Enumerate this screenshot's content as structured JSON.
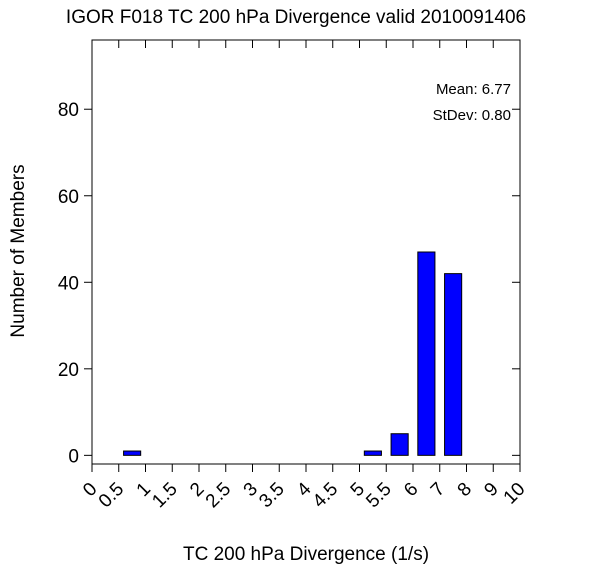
{
  "chart_data": {
    "type": "bar",
    "title": "IGOR F018 TC 200 hPa Divergence valid 2010091406",
    "xlabel": "TC 200 hPa Divergence (1/s)",
    "ylabel": "Number of Members",
    "x_tick_labels": [
      "0",
      "0.5",
      "1",
      "1.5",
      "2",
      "2.5",
      "3",
      "3.5",
      "4",
      "4.5",
      "5",
      "5.5",
      "6",
      "7",
      "8",
      "9",
      "10"
    ],
    "y_ticks": [
      0,
      20,
      40,
      60,
      80
    ],
    "ylim": [
      -2,
      96
    ],
    "values": [
      0,
      1,
      0,
      0,
      0,
      0,
      0,
      0,
      0,
      0,
      1,
      5,
      47,
      42,
      0,
      0
    ],
    "bar_color": "#0000ff",
    "grid": false,
    "stats": {
      "mean_label": "Mean: 6.77",
      "stdev_label": "StDev: 0.80",
      "placement": "top-right"
    }
  }
}
